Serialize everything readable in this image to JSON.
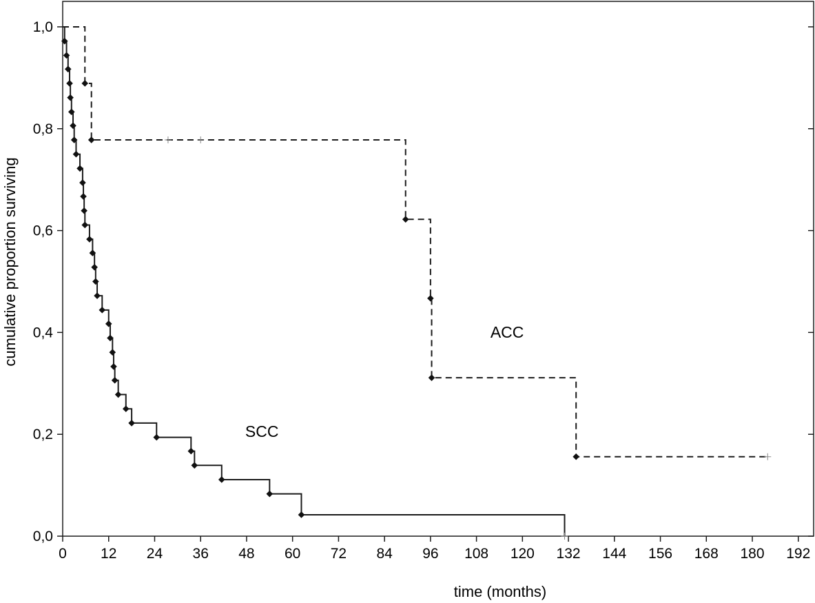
{
  "chart_data": {
    "type": "line",
    "subtype": "kaplan-meier step",
    "xlabel": "time (months)",
    "ylabel": "cumulative proportion surviving",
    "xlim": [
      0,
      196
    ],
    "ylim": [
      0,
      1.05
    ],
    "xticks": [
      0,
      12,
      24,
      36,
      48,
      60,
      72,
      84,
      96,
      108,
      120,
      132,
      144,
      156,
      168,
      180,
      192
    ],
    "xtick_labels": [
      "0",
      "12",
      "24",
      "36",
      "48",
      "60",
      "72",
      "84",
      "96",
      "108",
      "120",
      "132",
      "144",
      "156",
      "168",
      "180",
      "192"
    ],
    "yticks": [
      0,
      0.2,
      0.4,
      0.6,
      0.8,
      1.0
    ],
    "ytick_labels": [
      "0,0",
      "0,2",
      "0,4",
      "0,6",
      "0,8",
      "1,0"
    ],
    "series": [
      {
        "name": "SCC",
        "line_style": "solid",
        "color": "#1a1a1a",
        "label_position": [
          52,
          0.195
        ],
        "steps": [
          [
            0,
            1.0
          ],
          [
            0.5,
            0.972
          ],
          [
            1,
            0.944
          ],
          [
            1.4,
            0.917
          ],
          [
            1.8,
            0.889
          ],
          [
            2,
            0.861
          ],
          [
            2.3,
            0.833
          ],
          [
            2.7,
            0.806
          ],
          [
            3,
            0.778
          ],
          [
            3.5,
            0.75
          ],
          [
            4.5,
            0.722
          ],
          [
            5.2,
            0.694
          ],
          [
            5.4,
            0.667
          ],
          [
            5.6,
            0.639
          ],
          [
            5.8,
            0.611
          ],
          [
            7,
            0.583
          ],
          [
            7.8,
            0.556
          ],
          [
            8.3,
            0.528
          ],
          [
            8.6,
            0.5
          ],
          [
            9,
            0.472
          ],
          [
            10.3,
            0.444
          ],
          [
            12,
            0.417
          ],
          [
            12.4,
            0.389
          ],
          [
            13,
            0.361
          ],
          [
            13.3,
            0.333
          ],
          [
            13.6,
            0.306
          ],
          [
            14.5,
            0.278
          ],
          [
            16.5,
            0.25
          ],
          [
            18,
            0.222
          ],
          [
            24.5,
            0.194
          ],
          [
            33.5,
            0.167
          ],
          [
            34.4,
            0.139
          ],
          [
            41.5,
            0.111
          ],
          [
            54,
            0.083
          ],
          [
            62.3,
            0.042
          ],
          [
            131,
            0.0
          ]
        ],
        "events": [
          [
            0.5,
            0.972
          ],
          [
            1,
            0.944
          ],
          [
            1.4,
            0.917
          ],
          [
            1.8,
            0.889
          ],
          [
            2,
            0.861
          ],
          [
            2.3,
            0.833
          ],
          [
            2.7,
            0.806
          ],
          [
            3,
            0.778
          ],
          [
            3.5,
            0.75
          ],
          [
            4.5,
            0.722
          ],
          [
            5.2,
            0.694
          ],
          [
            5.4,
            0.667
          ],
          [
            5.6,
            0.639
          ],
          [
            5.8,
            0.611
          ],
          [
            7,
            0.583
          ],
          [
            7.8,
            0.556
          ],
          [
            8.3,
            0.528
          ],
          [
            8.6,
            0.5
          ],
          [
            9,
            0.472
          ],
          [
            10.3,
            0.444
          ],
          [
            12,
            0.417
          ],
          [
            12.4,
            0.389
          ],
          [
            13,
            0.361
          ],
          [
            13.3,
            0.333
          ],
          [
            13.6,
            0.306
          ],
          [
            14.5,
            0.278
          ],
          [
            16.5,
            0.25
          ],
          [
            18,
            0.222
          ],
          [
            24.5,
            0.194
          ],
          [
            33.5,
            0.167
          ],
          [
            34.4,
            0.139
          ],
          [
            41.5,
            0.111
          ],
          [
            54,
            0.083
          ],
          [
            62.3,
            0.042
          ]
        ],
        "censored": [
          [
            131,
            0.0
          ]
        ]
      },
      {
        "name": "ACC",
        "line_style": "dashed",
        "color": "#1a1a1a",
        "label_position": [
          116,
          0.39
        ],
        "steps": [
          [
            0,
            1.0
          ],
          [
            5.8,
            0.889
          ],
          [
            7.5,
            0.778
          ],
          [
            89.5,
            0.622
          ],
          [
            96,
            0.467
          ],
          [
            96.3,
            0.311
          ],
          [
            134,
            0.156
          ],
          [
            184,
            0.156
          ]
        ],
        "events": [
          [
            5.8,
            0.889
          ],
          [
            7.5,
            0.778
          ],
          [
            89.5,
            0.622
          ],
          [
            96,
            0.467
          ],
          [
            96.3,
            0.311
          ],
          [
            134,
            0.156
          ]
        ],
        "censored": [
          [
            27.5,
            0.778
          ],
          [
            36,
            0.778
          ],
          [
            184,
            0.156
          ]
        ]
      }
    ]
  }
}
